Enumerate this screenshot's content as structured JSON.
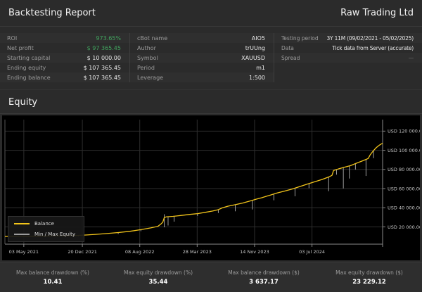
{
  "header": {
    "title": "Backtesting Report",
    "company": "Raw Trading Ltd"
  },
  "colors": {
    "profit_green": "#41a35e",
    "balance_yellow": "#f2c41a",
    "equity_gray": "#b0b0b0"
  },
  "summary": {
    "col1": [
      {
        "label": "ROI",
        "value": "973.65%"
      },
      {
        "label": "Net profit",
        "value": "$ 97 365.45"
      },
      {
        "label": "Starting capital",
        "value": "$ 10 000.00"
      },
      {
        "label": "Ending equity",
        "value": "$ 107 365.45"
      },
      {
        "label": "Ending balance",
        "value": "$ 107 365.45"
      }
    ],
    "col2": [
      {
        "label": "cBot name",
        "value": "AIO5"
      },
      {
        "label": "Author",
        "value": "trUUng"
      },
      {
        "label": "Symbol",
        "value": "XAUUSD"
      },
      {
        "label": "Period",
        "value": "m1"
      },
      {
        "label": "Leverage",
        "value": "1:500"
      }
    ],
    "col3": [
      {
        "label": "Testing period",
        "value": "3Y 11M (09/02/2021 - 05/02/2025)"
      },
      {
        "label": "Data",
        "value": "Tick data from Server (accurate)"
      },
      {
        "label": "Spread",
        "value": "—"
      }
    ]
  },
  "section_title": "Equity",
  "chart_data": {
    "type": "line",
    "title": "Equity",
    "ylim": [
      2000,
      132000
    ],
    "x_unit": "fraction of plot width (time axis 09/02/2021 - 05/02/2025)",
    "grid": true,
    "legend_position": "bottom-left",
    "legend": [
      {
        "label": "Balance",
        "color": "#f2c41a"
      },
      {
        "label": "Min / Max Equity",
        "color": "#9b9b9b"
      }
    ],
    "x_ticks": [
      {
        "f": 0.05,
        "label": "03 May 2021"
      },
      {
        "f": 0.205,
        "label": "20 Dec 2021"
      },
      {
        "f": 0.357,
        "label": "08 Aug 2022"
      },
      {
        "f": 0.509,
        "label": "28 Mar 2023"
      },
      {
        "f": 0.661,
        "label": "14 Nov 2023"
      },
      {
        "f": 0.813,
        "label": "03 Jul 2024"
      }
    ],
    "y_ticks": [
      {
        "value": 20000,
        "label": "USD 20 000.00"
      },
      {
        "value": 40000,
        "label": "USD 40 000.00"
      },
      {
        "value": 60000,
        "label": "USD 60 000.00"
      },
      {
        "value": 80000,
        "label": "USD 80 000.00"
      },
      {
        "value": 100000,
        "label": "USD 100 000.00"
      },
      {
        "value": 120000,
        "label": "USD 120 000.00"
      }
    ],
    "series": [
      {
        "name": "Balance",
        "points": [
          [
            0.0,
            10000
          ],
          [
            0.03,
            10050
          ],
          [
            0.06,
            10150
          ],
          [
            0.09,
            10300
          ],
          [
            0.12,
            10500
          ],
          [
            0.15,
            10750
          ],
          [
            0.18,
            11000
          ],
          [
            0.195,
            11200
          ],
          [
            0.21,
            11500
          ],
          [
            0.24,
            12200
          ],
          [
            0.27,
            13100
          ],
          [
            0.3,
            14100
          ],
          [
            0.33,
            15400
          ],
          [
            0.36,
            17100
          ],
          [
            0.385,
            18900
          ],
          [
            0.405,
            20600
          ],
          [
            0.413,
            23000
          ],
          [
            0.418,
            25000
          ],
          [
            0.422,
            29800
          ],
          [
            0.428,
            30600
          ],
          [
            0.445,
            31000
          ],
          [
            0.465,
            31900
          ],
          [
            0.49,
            33100
          ],
          [
            0.51,
            33900
          ],
          [
            0.53,
            35200
          ],
          [
            0.55,
            36600
          ],
          [
            0.565,
            38000
          ],
          [
            0.575,
            39800
          ],
          [
            0.59,
            41600
          ],
          [
            0.61,
            43200
          ],
          [
            0.63,
            45000
          ],
          [
            0.65,
            47200
          ],
          [
            0.665,
            48900
          ],
          [
            0.68,
            50500
          ],
          [
            0.7,
            52900
          ],
          [
            0.72,
            55300
          ],
          [
            0.74,
            57400
          ],
          [
            0.76,
            59500
          ],
          [
            0.78,
            62000
          ],
          [
            0.8,
            64600
          ],
          [
            0.82,
            67100
          ],
          [
            0.84,
            69600
          ],
          [
            0.858,
            72200
          ],
          [
            0.866,
            73800
          ],
          [
            0.87,
            78800
          ],
          [
            0.885,
            80700
          ],
          [
            0.9,
            82400
          ],
          [
            0.915,
            84000
          ],
          [
            0.93,
            86400
          ],
          [
            0.945,
            88700
          ],
          [
            0.957,
            90600
          ],
          [
            0.962,
            91500
          ],
          [
            0.967,
            95200
          ],
          [
            0.975,
            99300
          ],
          [
            0.983,
            102700
          ],
          [
            0.991,
            105300
          ],
          [
            1.0,
            107365
          ]
        ]
      },
      {
        "name": "Min / Max Equity",
        "spikes": [
          [
            0.195,
            11200,
            10200
          ],
          [
            0.3,
            14100,
            12600
          ],
          [
            0.36,
            17100,
            15600
          ],
          [
            0.422,
            33200,
            19600
          ],
          [
            0.432,
            30700,
            21500
          ],
          [
            0.448,
            31000,
            25500
          ],
          [
            0.51,
            33900,
            31500
          ],
          [
            0.565,
            38000,
            34500
          ],
          [
            0.61,
            43200,
            36300
          ],
          [
            0.655,
            47600,
            38200
          ],
          [
            0.712,
            54300,
            47800
          ],
          [
            0.768,
            60400,
            52000
          ],
          [
            0.805,
            65200,
            60500
          ],
          [
            0.857,
            72100,
            57300
          ],
          [
            0.878,
            80000,
            74500
          ],
          [
            0.896,
            82000,
            60200
          ],
          [
            0.912,
            83700,
            70500
          ],
          [
            0.928,
            86200,
            79800
          ],
          [
            0.956,
            90400,
            73200
          ],
          [
            0.976,
            99500,
            91800
          ]
        ]
      }
    ],
    "chart_colors": {
      "balance": "#f2c41a",
      "equity": "#b0b0b0",
      "grid": "#2e2e2e",
      "axis": "#8a8a8a",
      "tick_label": "#c8c8c8"
    }
  },
  "footer_stats": [
    {
      "label": "Max balance drawdown (%)",
      "value": "10.41"
    },
    {
      "label": "Max equity drawdown (%)",
      "value": "35.44"
    },
    {
      "label": "Max balance drawdown ($)",
      "value": "3 637.17"
    },
    {
      "label": "Max equity drawdown ($)",
      "value": "23 229.12"
    }
  ]
}
